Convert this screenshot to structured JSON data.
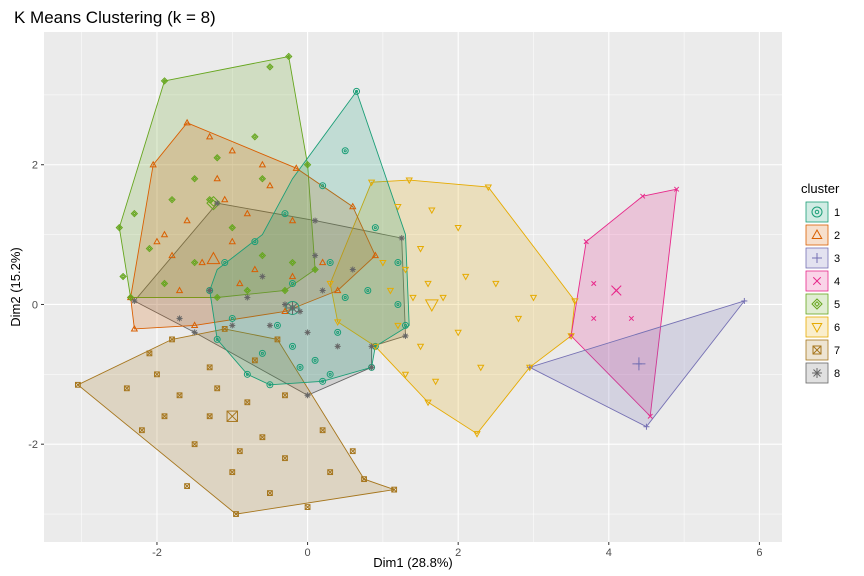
{
  "chart_data": {
    "type": "scatter",
    "title": "K Means Clustering (k = 8)",
    "xlabel": "Dim1 (28.8%)",
    "ylabel": "Dim2 (15.2%)",
    "xlim": [
      -3.5,
      6.3
    ],
    "ylim": [
      -3.4,
      3.9
    ],
    "x_ticks": [
      -2,
      0,
      2,
      4,
      6
    ],
    "y_ticks": [
      -2,
      0,
      2
    ],
    "x_tick_labels": [
      "-2",
      "0",
      "2",
      "4",
      "6"
    ],
    "y_tick_labels": [
      "-2",
      "0",
      "2"
    ],
    "grid": true,
    "background": "#EBEBEB",
    "legend": {
      "title": "cluster",
      "position": "right"
    },
    "series": [
      {
        "name": "1",
        "color": "#1B9E77",
        "symbol": "circle-dot",
        "hull": [
          [
            0.65,
            3.05
          ],
          [
            1.3,
            1.0
          ],
          [
            1.35,
            -0.3
          ],
          [
            0.9,
            -0.6
          ],
          [
            0.85,
            -0.9
          ],
          [
            0.2,
            -1.1
          ],
          [
            -0.5,
            -1.15
          ],
          [
            -0.8,
            -1.0
          ],
          [
            -1.2,
            -0.5
          ],
          [
            -1.3,
            0.2
          ],
          [
            -1.2,
            0.5
          ],
          [
            -0.6,
            1.0
          ],
          [
            -0.2,
            1.8
          ]
        ],
        "centroid": [
          -0.2,
          -0.05
        ],
        "points": [
          [
            0.65,
            3.05
          ],
          [
            0.5,
            2.2
          ],
          [
            0.2,
            1.7
          ],
          [
            -0.3,
            1.3
          ],
          [
            -0.7,
            0.9
          ],
          [
            -1.1,
            0.6
          ],
          [
            0.3,
            0.6
          ],
          [
            0.8,
            0.2
          ],
          [
            1.2,
            0.0
          ],
          [
            1.3,
            -0.3
          ],
          [
            0.9,
            -0.6
          ],
          [
            0.85,
            -0.9
          ],
          [
            0.2,
            -1.1
          ],
          [
            -0.5,
            -1.15
          ],
          [
            -0.8,
            -1.0
          ],
          [
            -1.2,
            -0.5
          ],
          [
            -0.4,
            -0.3
          ],
          [
            -0.2,
            -0.6
          ],
          [
            0.1,
            -0.8
          ],
          [
            0.4,
            -0.4
          ],
          [
            -0.6,
            -0.7
          ],
          [
            -1.0,
            -0.2
          ],
          [
            0.5,
            0.1
          ],
          [
            -0.2,
            0.3
          ],
          [
            0.9,
            1.1
          ],
          [
            1.2,
            0.6
          ],
          [
            -1.3,
            0.2
          ],
          [
            0.3,
            -1.0
          ],
          [
            -0.1,
            -0.9
          ]
        ]
      },
      {
        "name": "2",
        "color": "#D95F02",
        "symbol": "triangle",
        "hull": [
          [
            -1.6,
            2.6
          ],
          [
            -0.15,
            1.95
          ],
          [
            0.6,
            1.4
          ],
          [
            0.9,
            0.7
          ],
          [
            0.4,
            0.2
          ],
          [
            -0.3,
            -0.1
          ],
          [
            -1.5,
            -0.3
          ],
          [
            -2.3,
            -0.35
          ],
          [
            -2.35,
            0.1
          ],
          [
            -2.05,
            2.0
          ]
        ],
        "centroid": [
          -1.25,
          0.65
        ],
        "points": [
          [
            -1.6,
            2.6
          ],
          [
            -1.3,
            2.4
          ],
          [
            -1.0,
            2.2
          ],
          [
            -0.6,
            2.0
          ],
          [
            -0.15,
            1.95
          ],
          [
            -0.5,
            1.7
          ],
          [
            -1.1,
            1.5
          ],
          [
            -1.6,
            1.2
          ],
          [
            -1.9,
            1.0
          ],
          [
            -2.05,
            2.0
          ],
          [
            -2.0,
            0.9
          ],
          [
            -1.8,
            0.7
          ],
          [
            -1.4,
            0.6
          ],
          [
            -1.0,
            0.9
          ],
          [
            -0.7,
            0.5
          ],
          [
            -0.2,
            0.4
          ],
          [
            0.2,
            0.6
          ],
          [
            0.6,
            1.4
          ],
          [
            0.9,
            0.7
          ],
          [
            0.4,
            0.2
          ],
          [
            -0.3,
            -0.1
          ],
          [
            -0.9,
            0.3
          ],
          [
            -1.5,
            -0.3
          ],
          [
            -2.3,
            -0.35
          ],
          [
            -2.35,
            0.1
          ],
          [
            -1.7,
            0.2
          ],
          [
            -1.2,
            1.8
          ],
          [
            -0.2,
            1.2
          ],
          [
            -0.8,
            1.3
          ]
        ]
      },
      {
        "name": "3",
        "color": "#7570B3",
        "symbol": "plus",
        "hull": [
          [
            5.8,
            0.05
          ],
          [
            4.5,
            -1.75
          ],
          [
            2.95,
            -0.9
          ]
        ],
        "centroid": [
          4.4,
          -0.85
        ],
        "points": [
          [
            5.8,
            0.05
          ],
          [
            4.5,
            -1.75
          ],
          [
            2.95,
            -0.9
          ],
          [
            4.4,
            -0.85
          ]
        ]
      },
      {
        "name": "4",
        "color": "#E7298A",
        "symbol": "cross",
        "hull": [
          [
            4.9,
            1.65
          ],
          [
            4.45,
            1.55
          ],
          [
            3.7,
            0.9
          ],
          [
            3.5,
            -0.45
          ],
          [
            4.55,
            -1.6
          ]
        ],
        "centroid": [
          4.1,
          0.2
        ],
        "points": [
          [
            4.9,
            1.65
          ],
          [
            4.45,
            1.55
          ],
          [
            3.7,
            0.9
          ],
          [
            3.8,
            0.3
          ],
          [
            4.1,
            0.2
          ],
          [
            3.8,
            -0.2
          ],
          [
            4.3,
            -0.2
          ],
          [
            3.5,
            -0.45
          ],
          [
            4.55,
            -1.6
          ]
        ]
      },
      {
        "name": "5",
        "color": "#66A61E",
        "symbol": "diamond",
        "hull": [
          [
            -1.9,
            3.2
          ],
          [
            -0.25,
            3.55
          ],
          [
            0.0,
            2.0
          ],
          [
            0.1,
            0.5
          ],
          [
            -0.3,
            0.2
          ],
          [
            -1.2,
            0.1
          ],
          [
            -2.35,
            0.1
          ],
          [
            -2.5,
            1.1
          ]
        ],
        "centroid": [
          -1.25,
          1.45
        ],
        "points": [
          [
            -1.9,
            3.2
          ],
          [
            -0.25,
            3.55
          ],
          [
            -0.5,
            3.4
          ],
          [
            -0.7,
            2.4
          ],
          [
            -1.2,
            2.1
          ],
          [
            -1.5,
            1.8
          ],
          [
            -1.8,
            1.5
          ],
          [
            -2.3,
            1.3
          ],
          [
            -2.5,
            1.1
          ],
          [
            -2.45,
            0.4
          ],
          [
            -2.35,
            0.1
          ],
          [
            -1.9,
            0.3
          ],
          [
            -1.5,
            0.6
          ],
          [
            -1.0,
            1.1
          ],
          [
            -0.6,
            0.7
          ],
          [
            -0.2,
            0.6
          ],
          [
            0.1,
            0.5
          ],
          [
            0.0,
            2.0
          ],
          [
            -0.3,
            0.2
          ],
          [
            -1.2,
            0.1
          ],
          [
            -1.3,
            1.5
          ],
          [
            -0.6,
            1.8
          ],
          [
            -2.1,
            0.8
          ],
          [
            -0.8,
            0.2
          ]
        ]
      },
      {
        "name": "6",
        "color": "#E6AB02",
        "symbol": "triangle-down",
        "hull": [
          [
            0.85,
            1.75
          ],
          [
            1.35,
            1.78
          ],
          [
            2.4,
            1.68
          ],
          [
            3.55,
            0.05
          ],
          [
            3.5,
            -0.45
          ],
          [
            2.95,
            -0.9
          ],
          [
            2.25,
            -1.85
          ],
          [
            1.6,
            -1.4
          ],
          [
            0.9,
            -0.6
          ],
          [
            0.4,
            -0.25
          ],
          [
            0.3,
            0.3
          ]
        ],
        "centroid": [
          1.65,
          0.0
        ],
        "points": [
          [
            0.85,
            1.75
          ],
          [
            1.35,
            1.78
          ],
          [
            2.4,
            1.68
          ],
          [
            1.2,
            1.4
          ],
          [
            1.65,
            1.35
          ],
          [
            2.0,
            1.1
          ],
          [
            1.5,
            0.8
          ],
          [
            1.0,
            0.6
          ],
          [
            1.3,
            0.5
          ],
          [
            1.6,
            0.3
          ],
          [
            2.1,
            0.4
          ],
          [
            2.5,
            0.3
          ],
          [
            3.0,
            0.1
          ],
          [
            3.55,
            0.05
          ],
          [
            3.5,
            -0.45
          ],
          [
            2.95,
            -0.9
          ],
          [
            2.25,
            -1.85
          ],
          [
            1.6,
            -1.4
          ],
          [
            1.3,
            -1.0
          ],
          [
            0.9,
            -0.6
          ],
          [
            0.4,
            -0.25
          ],
          [
            0.3,
            0.3
          ],
          [
            1.2,
            -0.3
          ],
          [
            1.5,
            -0.6
          ],
          [
            2.0,
            -0.4
          ],
          [
            2.3,
            -0.9
          ],
          [
            1.8,
            0.1
          ],
          [
            1.1,
            0.2
          ],
          [
            2.8,
            -0.2
          ],
          [
            1.7,
            -1.1
          ],
          [
            1.4,
            0.1
          ]
        ]
      },
      {
        "name": "7",
        "color": "#A6761D",
        "symbol": "square-x",
        "hull": [
          [
            -3.05,
            -1.15
          ],
          [
            -1.8,
            -0.5
          ],
          [
            -1.1,
            -0.35
          ],
          [
            -0.4,
            -0.5
          ],
          [
            0.75,
            -2.5
          ],
          [
            1.15,
            -2.65
          ],
          [
            -0.95,
            -3.0
          ]
        ],
        "centroid": [
          -1.0,
          -1.6
        ],
        "points": [
          [
            -3.05,
            -1.15
          ],
          [
            -1.8,
            -0.5
          ],
          [
            -1.1,
            -0.35
          ],
          [
            -0.4,
            -0.5
          ],
          [
            -0.7,
            -0.8
          ],
          [
            -1.3,
            -0.9
          ],
          [
            -2.1,
            -0.7
          ],
          [
            -2.4,
            -1.2
          ],
          [
            -2.2,
            -1.8
          ],
          [
            -1.7,
            -1.3
          ],
          [
            -1.2,
            -1.2
          ],
          [
            -0.8,
            -1.4
          ],
          [
            -0.3,
            -1.3
          ],
          [
            0.2,
            -1.8
          ],
          [
            0.6,
            -2.1
          ],
          [
            0.75,
            -2.5
          ],
          [
            1.15,
            -2.65
          ],
          [
            0.3,
            -2.4
          ],
          [
            -0.3,
            -2.2
          ],
          [
            -0.9,
            -2.1
          ],
          [
            -1.5,
            -2.0
          ],
          [
            -1.9,
            -1.6
          ],
          [
            -1.6,
            -2.6
          ],
          [
            -0.95,
            -3.0
          ],
          [
            -0.5,
            -2.7
          ],
          [
            0.0,
            -2.9
          ],
          [
            -1.3,
            -1.6
          ],
          [
            -0.6,
            -1.9
          ],
          [
            -2.0,
            -1.0
          ],
          [
            -1.0,
            -2.4
          ]
        ]
      },
      {
        "name": "8",
        "color": "#666666",
        "symbol": "asterisk",
        "hull": [
          [
            -1.2,
            1.45
          ],
          [
            0.1,
            1.2
          ],
          [
            1.25,
            0.95
          ],
          [
            1.3,
            -0.45
          ],
          [
            0.85,
            -0.6
          ],
          [
            0.85,
            -0.9
          ],
          [
            0.0,
            -1.3
          ],
          [
            -1.5,
            -0.4
          ],
          [
            -2.3,
            0.05
          ]
        ],
        "centroid": [
          -0.2,
          -0.05
        ],
        "points": [
          [
            -1.2,
            1.45
          ],
          [
            0.1,
            1.2
          ],
          [
            1.25,
            0.95
          ],
          [
            0.6,
            0.5
          ],
          [
            0.2,
            0.2
          ],
          [
            -0.3,
            0.0
          ],
          [
            -0.8,
            0.1
          ],
          [
            -1.3,
            0.2
          ],
          [
            -2.3,
            0.05
          ],
          [
            -1.7,
            -0.2
          ],
          [
            -1.0,
            -0.3
          ],
          [
            -0.5,
            -0.3
          ],
          [
            0.0,
            -0.4
          ],
          [
            0.4,
            -0.6
          ],
          [
            0.85,
            -0.6
          ],
          [
            0.85,
            -0.9
          ],
          [
            1.3,
            -0.45
          ],
          [
            0.0,
            -1.3
          ],
          [
            -1.5,
            -0.4
          ],
          [
            -0.6,
            0.4
          ],
          [
            0.1,
            0.7
          ],
          [
            -0.1,
            -0.1
          ]
        ]
      }
    ]
  }
}
